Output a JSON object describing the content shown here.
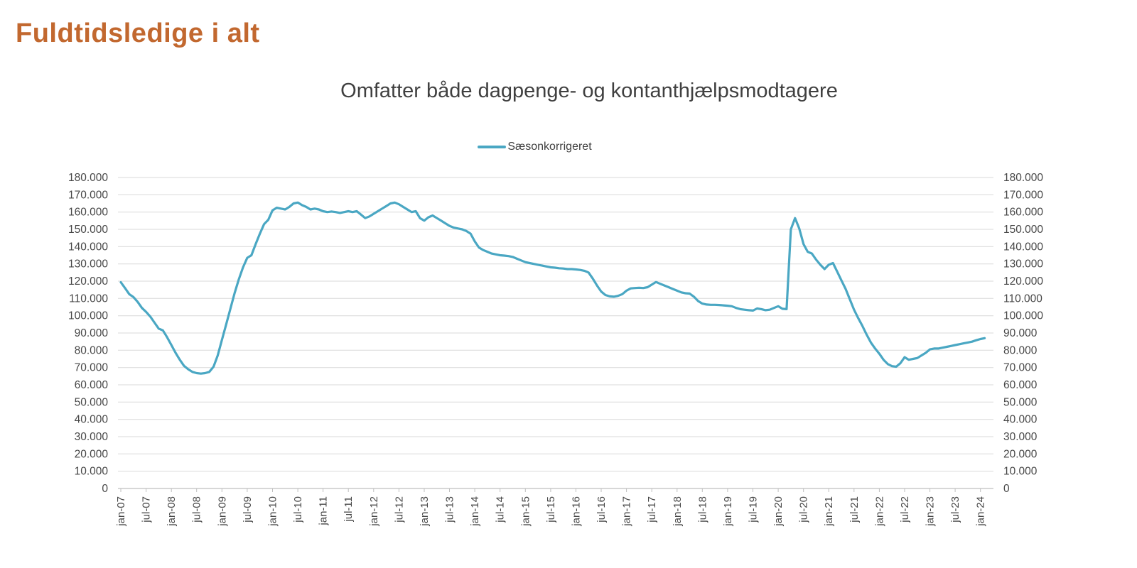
{
  "page": {
    "title": "Fuldtidsledige i alt"
  },
  "colors": {
    "title": "#C2682F",
    "subtitle": "#404040",
    "axis_labels": "#474747",
    "gridline": "#D9D9D9",
    "axis_line": "#BFBFBF",
    "series_line": "#4AA7C3"
  },
  "chart_data": {
    "type": "line",
    "title": "Omfatter både dagpenge- og kontanthjælpsmodtagere",
    "xlabel": "",
    "ylabel": "",
    "ylim": [
      0,
      180000
    ],
    "y_tick_interval": 10000,
    "grid": "horizontal",
    "legend_position": "top-center",
    "frequency": "monthly",
    "x_start": "jan-07",
    "x_end": "feb-24",
    "y_tick_labels": [
      "180.000",
      "170.000",
      "160.000",
      "150.000",
      "140.000",
      "130.000",
      "120.000",
      "110.000",
      "100.000",
      "90.000",
      "80.000",
      "70.000",
      "60.000",
      "50.000",
      "40.000",
      "30.000",
      "20.000",
      "10.000",
      "0"
    ],
    "x_tick_labels": [
      "jan-07",
      "jul-07",
      "jan-08",
      "jul-08",
      "jan-09",
      "jul-09",
      "jan-10",
      "jul-10",
      "jan-11",
      "jul-11",
      "jan-12",
      "jul-12",
      "jan-13",
      "jul-13",
      "jan-14",
      "jul-14",
      "jan-15",
      "jul-15",
      "jan-16",
      "jul-16",
      "jan-17",
      "jul-17",
      "jan-18",
      "jul-18",
      "jan-19",
      "jul-19",
      "jan-20",
      "jul-20",
      "jan-21",
      "jul-21",
      "jan-22",
      "jul-22",
      "jan-23",
      "jul-23",
      "jan-24"
    ],
    "values_unit": "thousand persons",
    "series": [
      {
        "name": "Sæsonkorrigeret",
        "color": "#4AA7C3",
        "values": [
          119.4,
          116.0,
          112.5,
          110.8,
          108.0,
          104.5,
          102.2,
          99.5,
          96.0,
          92.5,
          91.5,
          87.5,
          83.0,
          78.5,
          74.5,
          71.0,
          69.0,
          67.5,
          66.8,
          66.5,
          66.8,
          67.5,
          70.5,
          77.0,
          86.0,
          95.0,
          104.0,
          113.0,
          121.0,
          128.0,
          133.5,
          135.0,
          141.5,
          147.5,
          153.0,
          155.5,
          161.0,
          162.5,
          162.0,
          161.5,
          163.0,
          165.0,
          165.5,
          164.0,
          163.0,
          161.5,
          162.0,
          161.5,
          160.5,
          160.0,
          160.3,
          160.0,
          159.5,
          160.0,
          160.5,
          160.0,
          160.5,
          158.5,
          156.5,
          157.5,
          159.0,
          160.5,
          162.0,
          163.5,
          165.0,
          165.5,
          164.5,
          163.0,
          161.5,
          160.0,
          160.5,
          156.5,
          155.0,
          157.0,
          158.0,
          156.5,
          155.0,
          153.5,
          152.0,
          151.0,
          150.5,
          150.0,
          149.0,
          147.5,
          143.0,
          139.5,
          138.0,
          137.0,
          136.0,
          135.5,
          135.0,
          134.8,
          134.5,
          134.0,
          133.0,
          132.0,
          131.0,
          130.5,
          130.0,
          129.5,
          129.0,
          128.5,
          128.0,
          127.8,
          127.5,
          127.3,
          127.0,
          127.0,
          126.8,
          126.5,
          126.0,
          125.0,
          121.5,
          117.5,
          114.0,
          112.0,
          111.2,
          111.0,
          111.5,
          112.5,
          114.5,
          115.8,
          116.0,
          116.2,
          116.0,
          116.5,
          118.0,
          119.5,
          118.5,
          117.5,
          116.5,
          115.5,
          114.5,
          113.5,
          113.0,
          112.8,
          111.0,
          108.5,
          107.0,
          106.5,
          106.3,
          106.3,
          106.2,
          106.0,
          105.8,
          105.5,
          104.5,
          103.8,
          103.5,
          103.2,
          103.0,
          104.2,
          103.8,
          103.2,
          103.5,
          104.5,
          105.5,
          104.0,
          103.8,
          150.0,
          156.5,
          150.5,
          141.5,
          137.0,
          136.0,
          132.5,
          129.5,
          127.0,
          129.5,
          130.5,
          125.5,
          120.5,
          115.5,
          109.5,
          103.5,
          98.5,
          94.0,
          89.0,
          84.5,
          81.0,
          78.0,
          74.5,
          72.0,
          70.8,
          70.5,
          72.5,
          76.0,
          74.5,
          75.0,
          75.5,
          77.0,
          78.5,
          80.5,
          81.0,
          81.0,
          81.5,
          82.0,
          82.5,
          83.0,
          83.5,
          84.0,
          84.5,
          85.0,
          85.8,
          86.5,
          87.0
        ]
      }
    ]
  }
}
